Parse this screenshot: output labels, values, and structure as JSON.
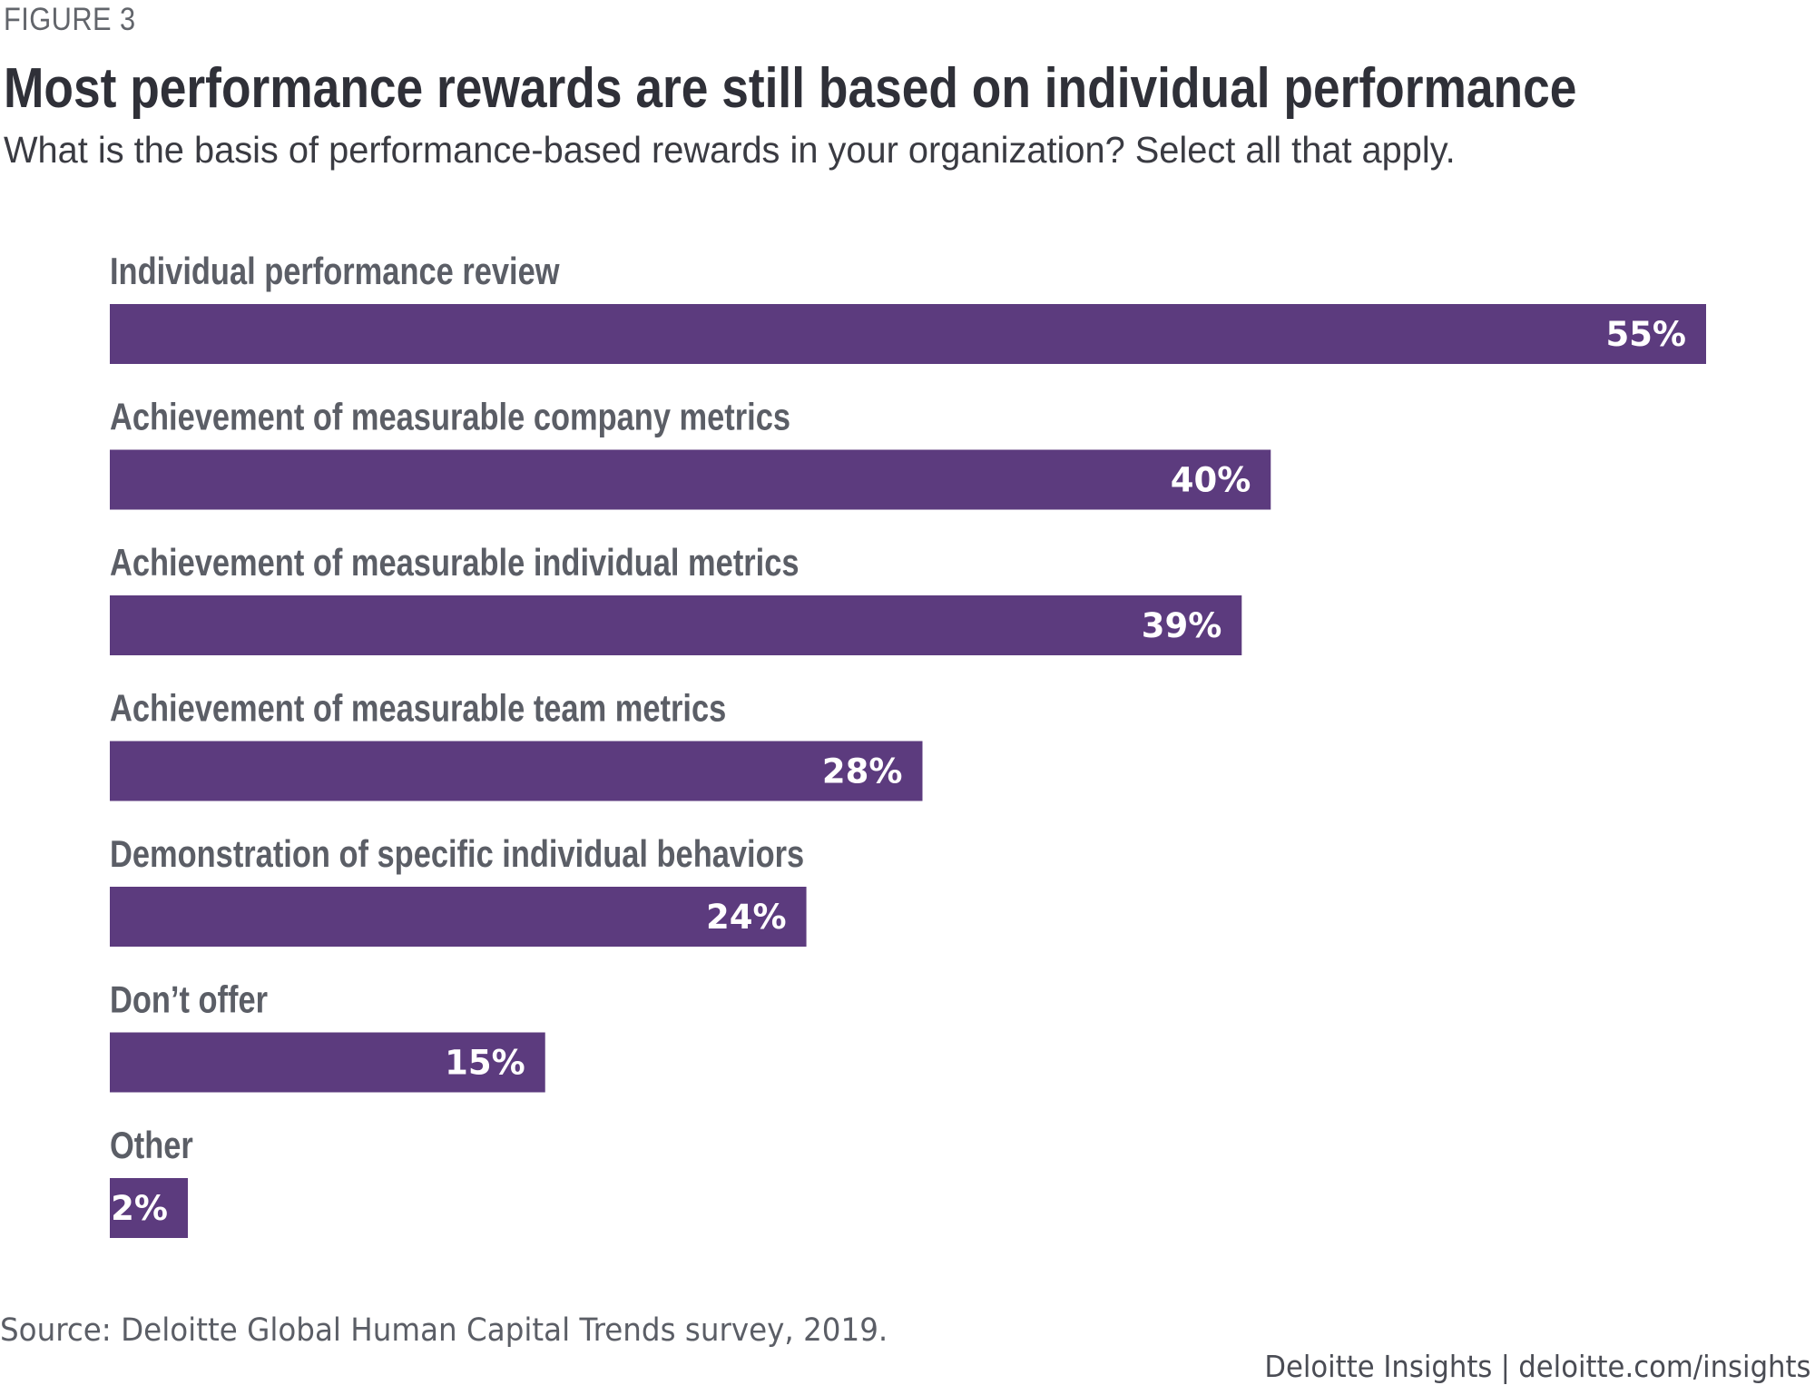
{
  "figure_label": "FIGURE 3",
  "title": "Most performance rewards are still based on individual performance",
  "subtitle": "What is the basis of performance-based rewards in your organization? Select all that apply.",
  "source": "Source: Deloitte Global Human Capital Trends survey, 2019.",
  "footer": {
    "brand": "Deloitte Insights",
    "separator": "|",
    "url": "deloitte.com/insights"
  },
  "colors": {
    "bar": "#5c3b7e",
    "bar_label": "#ffffff",
    "category_label": "#5b5e66",
    "title": "#2f3038"
  },
  "chart_data": {
    "type": "bar",
    "orientation": "horizontal",
    "title": "Most performance rewards are still based on individual performance",
    "subtitle": "What is the basis of performance-based rewards in your organization? Select all that apply.",
    "xlabel": "",
    "ylabel": "",
    "xlim": [
      0,
      55
    ],
    "grid": false,
    "legend": "none",
    "unit": "%",
    "categories": [
      "Individual performance review",
      "Achievement of measurable company metrics",
      "Achievement of measurable individual metrics",
      "Achievement of measurable team metrics",
      "Demonstration of specific individual behaviors",
      "Don’t offer",
      "Other"
    ],
    "values": [
      55,
      40,
      39,
      28,
      24,
      15,
      2
    ],
    "data_labels": [
      "55%",
      "40%",
      "39%",
      "28%",
      "24%",
      "15%",
      "2%"
    ]
  }
}
